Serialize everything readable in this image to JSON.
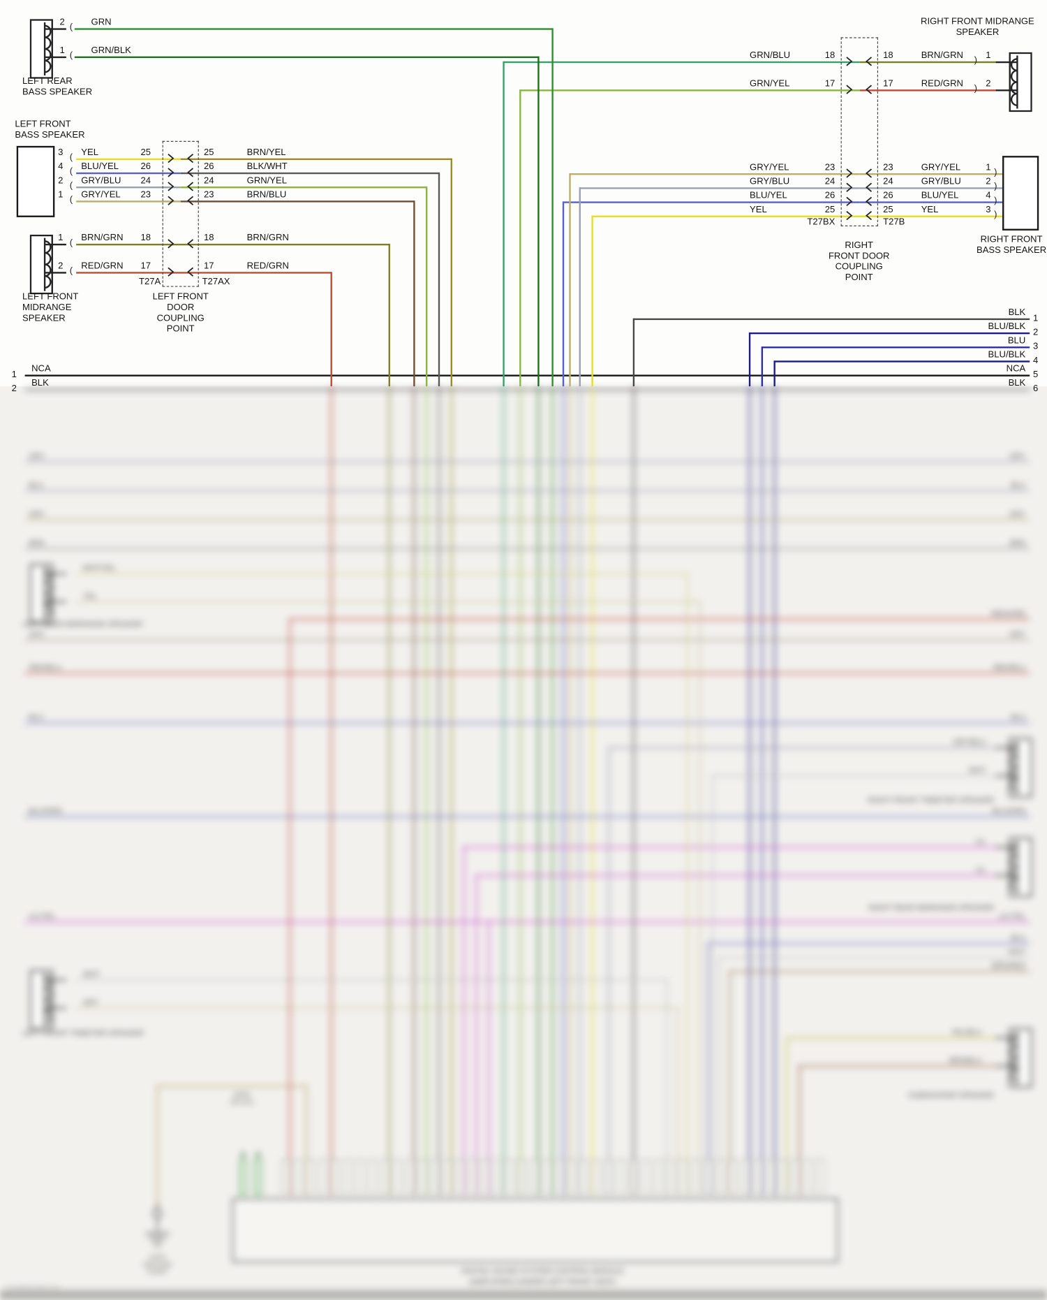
{
  "colors": {
    "grn": "#2f8f2f",
    "grn_blk": "#1f6f1f",
    "yel": "#e8df1c",
    "blu_yel": "#5560c8",
    "gry_blu": "#9aa0ae",
    "gry_yel": "#bcae6a",
    "brn_yel": "#9d8b22",
    "blk_wht": "#5a5a5a",
    "grn_yel": "#86b83c",
    "brn_blu": "#6e4f33",
    "brn_grn": "#7e7e22",
    "red_grn": "#bf4b35",
    "grn_blu": "#34a06a",
    "blu": "#2d2da8",
    "blu_blk": "#1c1c86",
    "blk": "#474747",
    "nca": "#141414",
    "red": "#cc4a3c",
    "lil": "#d94fd9",
    "tan": "#bfa05e",
    "pale_yel": "#d8d088",
    "khaki": "#ccc89a",
    "mist": "#9a9ab0",
    "sand": "#b0a878",
    "ash": "#909090",
    "taupe": "#a89888",
    "steel": "#7070c4",
    "silver": "#c4c4c4",
    "brnred": "#a08060",
    "oliv": "#c0c040",
    "rust": "#a06040"
  },
  "marks": {
    "l": "(",
    "r": ")"
  },
  "sharp": {
    "left_rear": {
      "name": "LEFT REAR\nBASS SPEAKER",
      "pin_top": "2",
      "wire_top": "GRN",
      "pin_bot": "1",
      "wire_bot": "GRN/BLK"
    },
    "left_front_bass": {
      "name": "LEFT FRONT\nBASS SPEAKER",
      "rows": [
        {
          "pin": "3",
          "wire": "YEL",
          "cp": "25",
          "cp_r": "25",
          "wire_r": "BRN/YEL"
        },
        {
          "pin": "4",
          "wire": "BLU/YEL",
          "cp": "26",
          "cp_r": "26",
          "wire_r": "BLK/WHT"
        },
        {
          "pin": "2",
          "wire": "GRY/BLU",
          "cp": "24",
          "cp_r": "24",
          "wire_r": "GRN/YEL"
        },
        {
          "pin": "1",
          "wire": "GRY/YEL",
          "cp": "23",
          "cp_r": "23",
          "wire_r": "BRN/BLU"
        }
      ]
    },
    "left_front_mid": {
      "name": "LEFT FRONT\nMIDRANGE\nSPEAKER",
      "t_left": "T27A",
      "t_right": "T27AX",
      "rows": [
        {
          "pin": "1",
          "wire": "BRN/GRN",
          "cp": "18",
          "cp_r": "18",
          "wire_r": "BRN/GRN"
        },
        {
          "pin": "2",
          "wire": "RED/GRN",
          "cp": "17",
          "cp_r": "17",
          "wire_r": "RED/GRN"
        }
      ]
    },
    "left_coupling_label": "LEFT FRONT\nDOOR\nCOUPLING\nPOINT",
    "right_coupling_label": "RIGHT\nFRONT DOOR\nCOUPLING\nPOINT",
    "right_front_mid": {
      "name": "RIGHT FRONT MIDRANGE\nSPEAKER",
      "rows": [
        {
          "wire_l": "GRN/BLU",
          "cp": "18",
          "cp_r": "18",
          "wire_r": "BRN/GRN",
          "pin": "1"
        },
        {
          "wire_l": "GRN/YEL",
          "cp": "17",
          "cp_r": "17",
          "wire_r": "RED/GRN",
          "pin": "2"
        }
      ]
    },
    "right_front_bass": {
      "name": "RIGHT FRONT\nBASS SPEAKER",
      "t_left": "T27BX",
      "t_right": "T27B",
      "rows": [
        {
          "wire_l": "GRY/YEL",
          "cp": "23",
          "cp_r": "23",
          "wire_r": "GRY/YEL",
          "pin": "1"
        },
        {
          "wire_l": "GRY/BLU",
          "cp": "24",
          "cp_r": "24",
          "wire_r": "GRY/BLU",
          "pin": "2"
        },
        {
          "wire_l": "BLU/YEL",
          "cp": "26",
          "cp_r": "26",
          "wire_r": "BLU/YEL",
          "pin": "4"
        },
        {
          "wire_l": "YEL",
          "cp": "25",
          "cp_r": "25",
          "wire_r": "YEL",
          "pin": "3"
        }
      ]
    },
    "right_edge_rows": [
      {
        "wire": "BLK",
        "num": "1"
      },
      {
        "wire": "BLU/BLK",
        "num": "2"
      },
      {
        "wire": "BLU",
        "num": "3"
      },
      {
        "wire": "BLU/BLK",
        "num": "4"
      },
      {
        "wire": "NCA",
        "num": "5"
      },
      {
        "wire": "BLK",
        "num": "6"
      }
    ],
    "left_edge_rows": [
      {
        "wire": "NCA",
        "num": "1"
      },
      {
        "wire": "BLK",
        "num": "2"
      }
    ]
  },
  "blurred": {
    "speakers": {
      "l1": {
        "name": "LEFT REAR MIDRANGE SPEAKER",
        "w1": "WHT/YEL",
        "w2": "YEL"
      },
      "r1": {
        "name": "RIGHT FRONT TWEETER SPEAKER",
        "w1": "GRY/BLU",
        "w2": "WHT"
      },
      "r2": {
        "name": "RIGHT REAR MIDRANGE SPEAKER"
      },
      "l2": {
        "name": "LEFT FRONT TWEETER SPEAKER",
        "w1": "WHT",
        "w2": "GRY"
      },
      "r3": {
        "name": "SUBWOOFER SPEAKER",
        "w1": "YEL/BLU",
        "w2": "BRN/BLU"
      }
    },
    "rows": {
      "g": "GRY",
      "h": "BLU",
      "i": "GRY",
      "j": "BRN",
      "l": "RED/GRN",
      "m": "GRY",
      "n": "RED/BLU",
      "o": "BLU",
      "q": "BLU/GRN",
      "r1": "LIL",
      "r2": "LIL",
      "s": "LIL/YEL",
      "t1": "BLU",
      "t2": "WHT",
      "t3": "BRN/RED"
    },
    "junction_label": "WIRE\nSPLICE",
    "ground_label": "G203\nGROUND\nPOINT",
    "amp_title": "DIGITAL SOUND SYSTEM CONTROL MODULE",
    "amp_subtitle": "(AMPLIFIER) (UNDER LEFT FRONT SEAT)",
    "watermark": "TroubleCodes.net"
  }
}
